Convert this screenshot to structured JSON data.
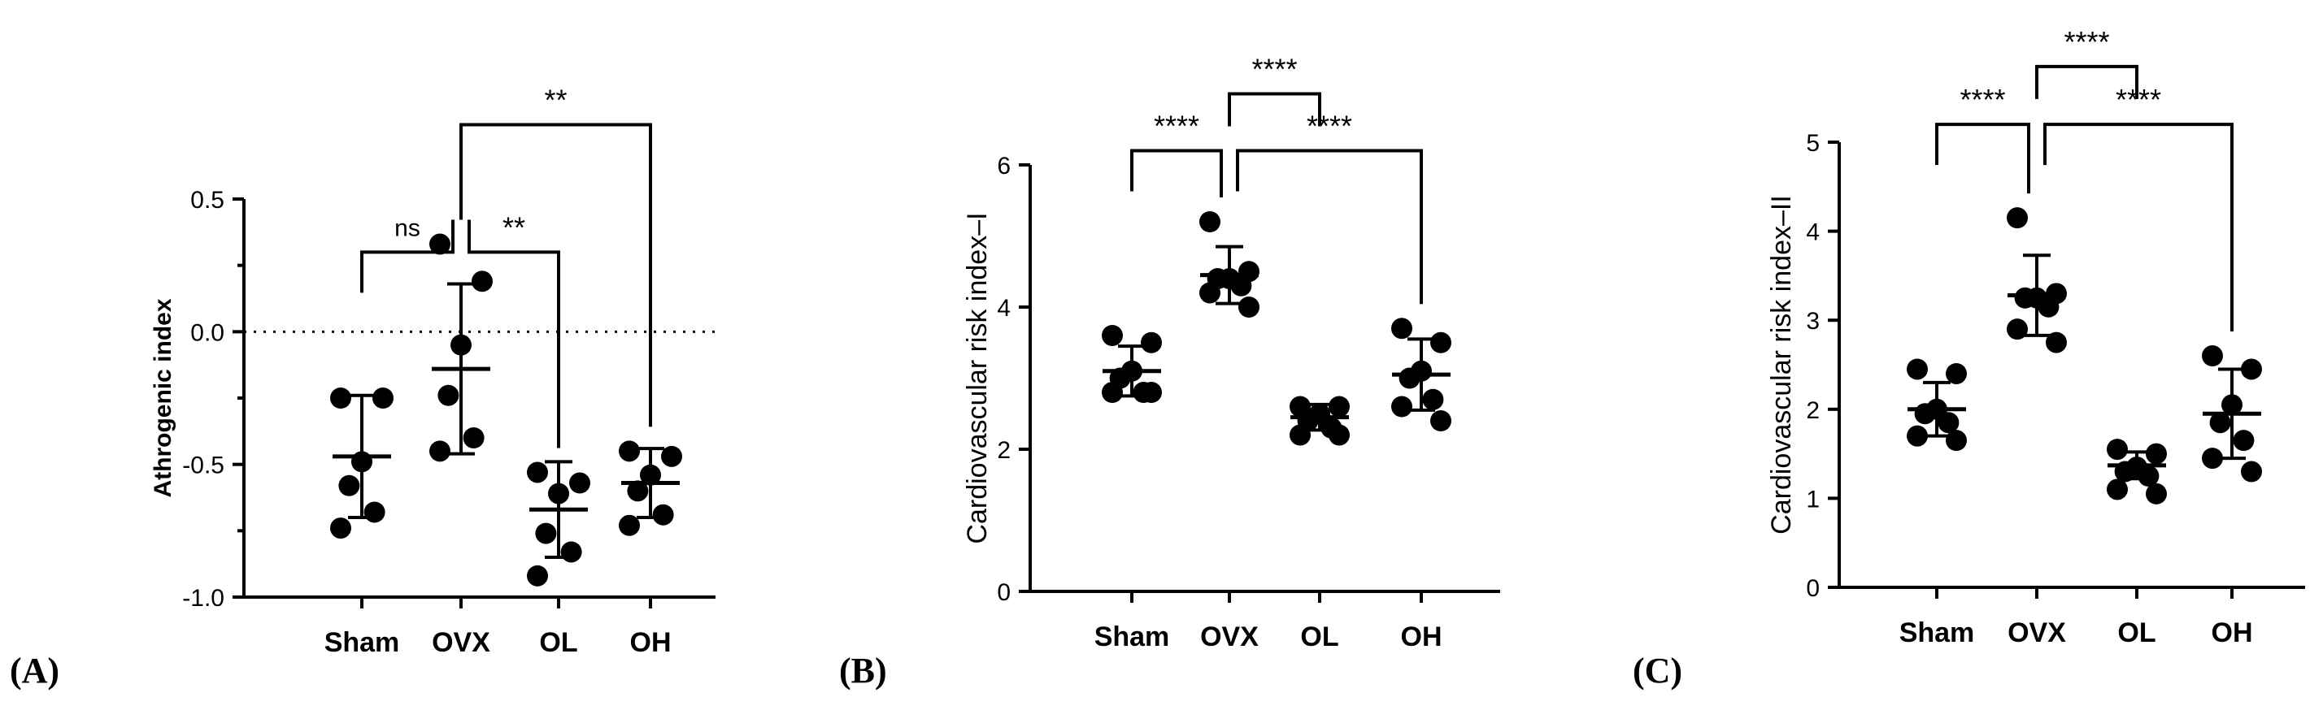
{
  "chart_data": [
    {
      "type": "scatter",
      "panel_label": "(A)",
      "ylabel": "Athrogenic index",
      "categories": [
        "Sham",
        "OVX",
        "OL",
        "OH"
      ],
      "ylim": [
        -1.0,
        0.5
      ],
      "yticks": [
        -1.0,
        -0.5,
        0.0,
        0.5
      ],
      "ytick_labels": [
        "-1.0",
        "-0.5",
        "0.0",
        "0.5"
      ],
      "reference_line": 0.0,
      "points": [
        [
          -0.25,
          -0.25,
          -0.49,
          -0.58,
          -0.68,
          -0.74
        ],
        [
          0.33,
          0.19,
          -0.05,
          -0.24,
          -0.4,
          -0.45
        ],
        [
          -0.53,
          -0.57,
          -0.61,
          -0.76,
          -0.83,
          -0.92
        ],
        [
          -0.45,
          -0.47,
          -0.54,
          -0.6,
          -0.69,
          -0.73
        ]
      ],
      "means": [
        -0.47,
        -0.14,
        -0.67,
        -0.57
      ],
      "sd": [
        0.23,
        0.32,
        0.18,
        0.13
      ],
      "comparisons": [
        {
          "groups": [
            0,
            1
          ],
          "label": "ns",
          "y": 0.3
        },
        {
          "groups": [
            1,
            2
          ],
          "label": "**",
          "y": 0.3
        },
        {
          "groups": [
            1,
            3
          ],
          "label": "**",
          "y": 0.78
        }
      ]
    },
    {
      "type": "scatter",
      "panel_label": "(B)",
      "ylabel": "Cardiovascular risk index–I",
      "categories": [
        "Sham",
        "OVX",
        "OL",
        "OH"
      ],
      "ylim": [
        0,
        6
      ],
      "yticks": [
        0,
        2,
        4,
        6
      ],
      "ytick_labels": [
        "0",
        "2",
        "4",
        "6"
      ],
      "points": [
        [
          3.6,
          3.5,
          3.1,
          3.0,
          2.8,
          2.8,
          2.8
        ],
        [
          5.2,
          4.5,
          4.4,
          4.4,
          4.3,
          4.2,
          4.0
        ],
        [
          2.6,
          2.6,
          2.5,
          2.4,
          2.3,
          2.2,
          2.2
        ],
        [
          3.7,
          3.5,
          3.1,
          3.0,
          2.7,
          2.6,
          2.4
        ]
      ],
      "means": [
        3.1,
        4.45,
        2.45,
        3.05
      ],
      "sd": [
        0.35,
        0.4,
        0.18,
        0.5
      ],
      "comparisons": [
        {
          "groups": [
            0,
            1
          ],
          "label": "****",
          "y": 6.2
        },
        {
          "groups": [
            1,
            3
          ],
          "label": "****",
          "y": 6.2
        },
        {
          "groups": [
            1,
            2
          ],
          "label": "****",
          "y": 7.0
        }
      ]
    },
    {
      "type": "scatter",
      "panel_label": "(C)",
      "ylabel": "Cardiovascular risk index–II",
      "categories": [
        "Sham",
        "OVX",
        "OL",
        "OH"
      ],
      "ylim": [
        0,
        5
      ],
      "yticks": [
        0,
        1,
        2,
        3,
        4,
        5
      ],
      "ytick_labels": [
        "0",
        "1",
        "2",
        "3",
        "4",
        "5"
      ],
      "points": [
        [
          2.45,
          2.4,
          2.0,
          1.95,
          1.85,
          1.7,
          1.65
        ],
        [
          4.15,
          3.3,
          3.25,
          3.25,
          3.15,
          2.9,
          2.75
        ],
        [
          1.55,
          1.5,
          1.35,
          1.3,
          1.25,
          1.1,
          1.05
        ],
        [
          2.6,
          2.45,
          2.05,
          1.85,
          1.65,
          1.45,
          1.3
        ]
      ],
      "means": [
        2.0,
        3.28,
        1.37,
        1.95
      ],
      "sd": [
        0.3,
        0.45,
        0.15,
        0.5
      ],
      "comparisons": [
        {
          "groups": [
            0,
            1
          ],
          "label": "****",
          "y": 5.2
        },
        {
          "groups": [
            1,
            3
          ],
          "label": "****",
          "y": 5.2
        },
        {
          "groups": [
            1,
            2
          ],
          "label": "****",
          "y": 5.85
        }
      ]
    }
  ]
}
